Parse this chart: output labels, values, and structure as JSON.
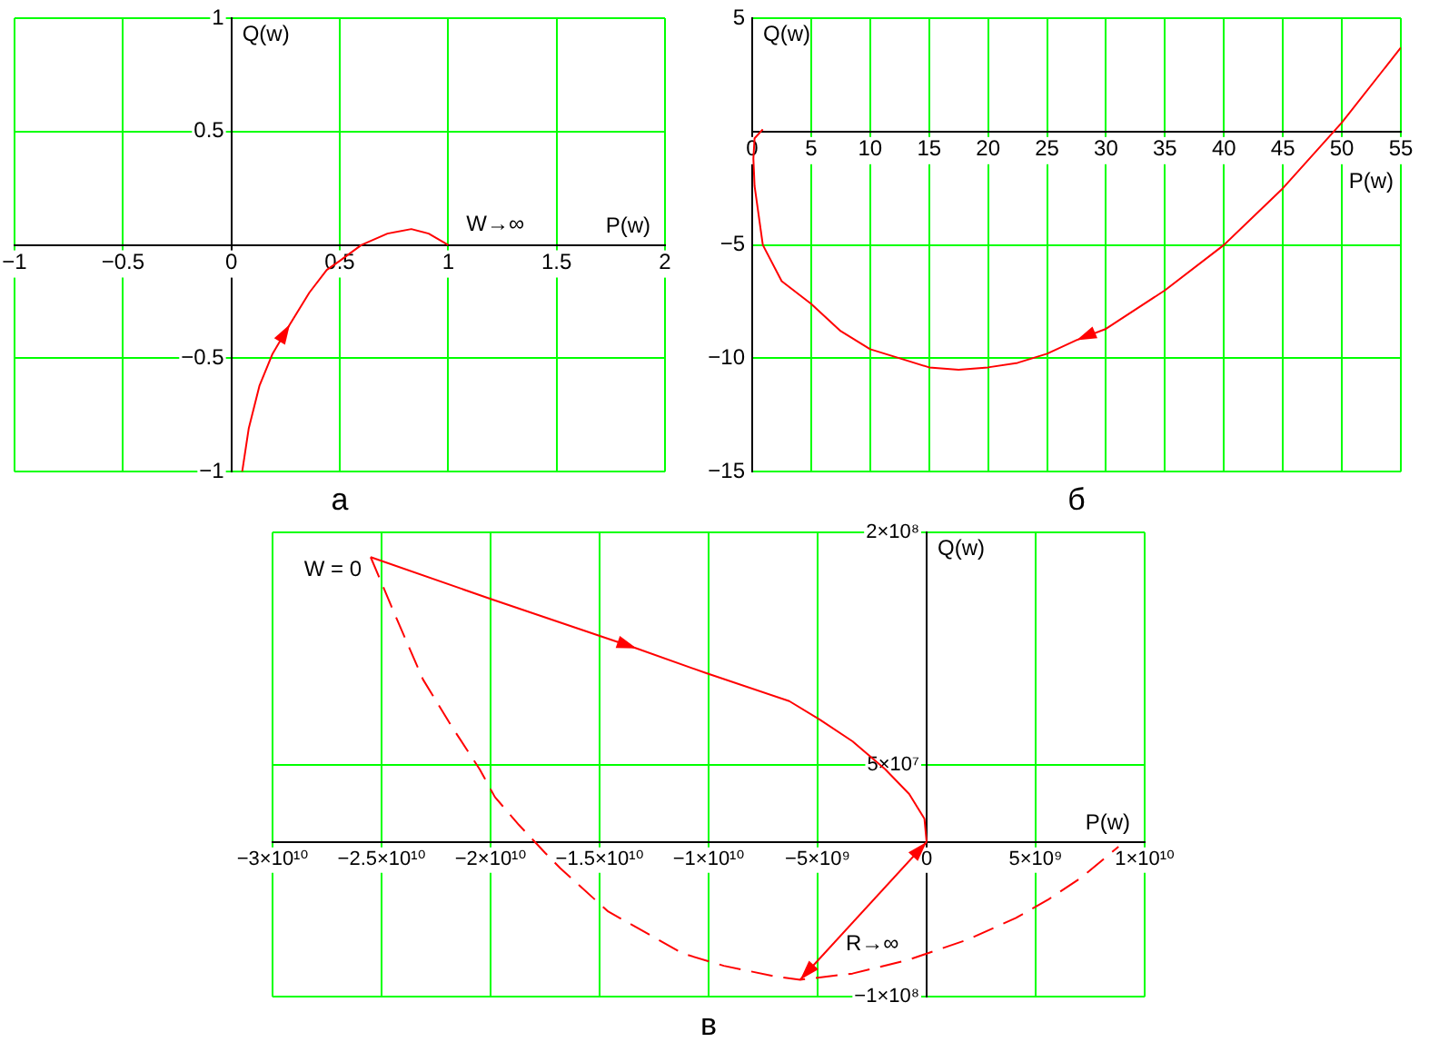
{
  "chart_data": [
    {
      "type": "line",
      "title": "а",
      "xlabel": "P(w)",
      "ylabel": "Q(w)",
      "xlim": [
        -1,
        2
      ],
      "ylim": [
        -1,
        1
      ],
      "xticks": [
        {
          "value": -1,
          "label": "−1"
        },
        {
          "value": -0.5,
          "label": "−0.5"
        },
        0,
        0.5,
        1,
        1.5,
        2
      ],
      "yticks": [
        {
          "value": -1,
          "label": "−1"
        },
        {
          "value": -0.5,
          "label": "−0.5"
        },
        0.5,
        1
      ],
      "grid": true,
      "legend": false,
      "marker": "none",
      "series": [
        {
          "color": "#ff0000",
          "x": [
            0.05,
            0.08,
            0.13,
            0.19,
            0.27,
            0.36,
            0.44,
            0.5,
            0.6,
            0.72,
            0.83,
            0.91,
            1
          ],
          "values": [
            -1,
            -0.81,
            -0.62,
            -0.48,
            -0.35,
            -0.21,
            -0.11,
            -0.07,
            0,
            0.05,
            0.07,
            0.05,
            0
          ]
        }
      ],
      "annotations": [
        {
          "text": "W→∞",
          "x": 1,
          "y": 0
        }
      ]
    },
    {
      "type": "line",
      "title": "б",
      "xlabel": "P(w)",
      "ylabel": "Q(w)",
      "xlim": [
        0,
        55
      ],
      "ylim": [
        -15,
        5
      ],
      "xticks": [
        0,
        5,
        10,
        15,
        20,
        25,
        30,
        35,
        40,
        45,
        50,
        55
      ],
      "yticks": [
        {
          "value": -15,
          "label": "−15"
        },
        {
          "value": -10,
          "label": "−10"
        },
        {
          "value": -5,
          "label": "−5"
        },
        5
      ],
      "grid": true,
      "legend": false,
      "marker": "none",
      "series": [
        {
          "color": "#ff0000",
          "x": [
            55,
            50,
            45,
            40,
            35,
            30,
            27.5,
            25,
            22.5,
            20,
            17.5,
            15,
            12.5,
            10,
            7.5,
            5,
            2.5,
            0.9,
            0.2,
            0.1,
            0.2,
            0.9
          ],
          "values": [
            3.7,
            0.4,
            -2.5,
            -5,
            -7,
            -8.7,
            -9.2,
            -9.8,
            -10.2,
            -10.4,
            -10.5,
            -10.4,
            -10,
            -9.6,
            -8.8,
            -7.6,
            -6.6,
            -5,
            -2.4,
            -1.2,
            -0.3,
            0.1
          ]
        }
      ]
    },
    {
      "type": "line",
      "title": "в",
      "xlabel": "P(w)",
      "ylabel": "Q(w)",
      "xlim": [
        -30000000000.0,
        10000000000.0
      ],
      "ylim": [
        -100000000.0,
        200000000.0
      ],
      "xticks": [
        {
          "value": -30000000000.0,
          "label": "−3×10¹⁰"
        },
        {
          "value": -25000000000.0,
          "label": "−2.5×10¹⁰"
        },
        {
          "value": -20000000000.0,
          "label": "−2×10¹⁰"
        },
        {
          "value": -15000000000.0,
          "label": "−1.5×10¹⁰"
        },
        {
          "value": -10000000000.0,
          "label": "−1×10¹⁰"
        },
        {
          "value": -5000000000.0,
          "label": "−5×10⁹"
        },
        0,
        {
          "value": 5000000000.0,
          "label": "5×10⁹"
        },
        {
          "value": 10000000000.0,
          "label": "1×10¹⁰"
        }
      ],
      "yticks": [
        {
          "value": -100000000.0,
          "label": "−1×10⁸"
        },
        {
          "value": 50000000.0,
          "label": "5×10⁷"
        },
        {
          "value": 200000000.0,
          "label": "2×10⁸"
        }
      ],
      "grid": true,
      "legend": false,
      "marker": "none",
      "series": [
        {
          "color": "#ff0000",
          "line_style": "solid",
          "x": [
            -25500000000.0,
            -20000000000.0,
            -13300000000.0,
            -10100000000.0,
            -6300000000.0,
            -4900000000.0,
            -3400000000.0,
            -1900000000.0,
            -800000000.0,
            -100000000.0,
            0
          ],
          "values": [
            184000000.0,
            157000000.0,
            125000000.0,
            109000000.0,
            91000000.0,
            79000000.0,
            65000000.0,
            47000000.0,
            31000000.0,
            15000000.0,
            0
          ]
        },
        {
          "color": "#ff0000",
          "line_style": "dashed",
          "x": [
            -25500000000.0,
            -24300000000.0,
            -23100000000.0,
            -21800000000.0,
            -20500000000.0,
            -19800000000.0,
            -18700000000.0,
            -17500000000.0,
            -16800000000.0,
            -14600000000.0,
            -12700000000.0,
            -11200000000.0,
            -9300000000.0,
            -6900000000.0,
            -5800000000.0,
            -3400000000.0,
            -800000000.0,
            1900000000.0,
            4100000000.0,
            5600000000.0,
            7100000000.0,
            8800000000.0
          ],
          "values": [
            184000000.0,
            144000000.0,
            105000000.0,
            75000000.0,
            47000000.0,
            29000000.0,
            11000000.0,
            -7000000.0,
            -17000000.0,
            -45000000.0,
            -60000000.0,
            -72000000.0,
            -80000000.0,
            -87000000.0,
            -89000000.0,
            -85000000.0,
            -76000000.0,
            -63000000.0,
            -49000000.0,
            -37000000.0,
            -23000000.0,
            -3000000.0
          ]
        }
      ],
      "annotations": [
        {
          "text": "W = 0",
          "x": -25500000000.0,
          "y": 184000000.0
        },
        "R→∞"
      ]
    }
  ]
}
